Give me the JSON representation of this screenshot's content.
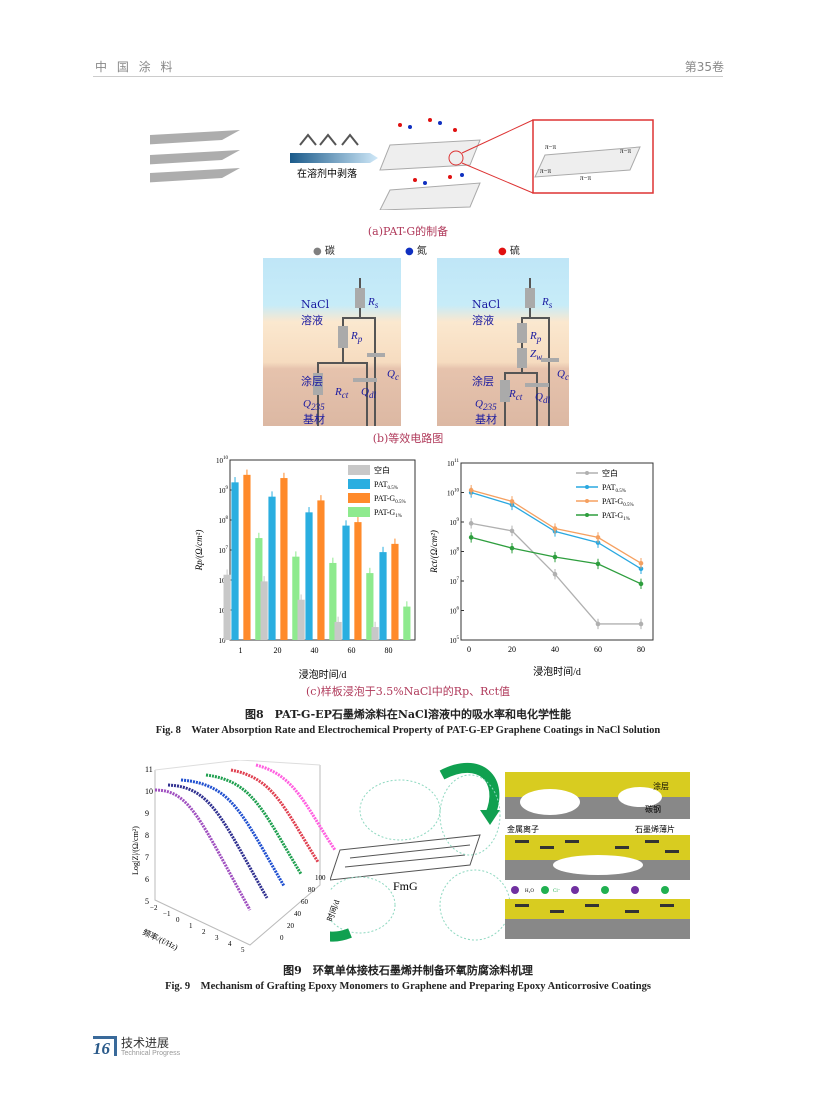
{
  "header": {
    "journal": "中 国 涂 料",
    "volume": "第35卷"
  },
  "fig8": {
    "a": {
      "label_solvent": "在溶剂中剥落",
      "pi": "π−π",
      "caption": "(a)PAT-G的制备"
    },
    "legend_atoms": [
      {
        "label": "碳",
        "color": "#808080"
      },
      {
        "label": "氮",
        "color": "#1030c0"
      },
      {
        "label": "硫",
        "color": "#e01010"
      }
    ],
    "b": {
      "nacl": "NaCl",
      "solution": "溶液",
      "coating": "涂层",
      "substrate_q": "Q",
      "substrate_sub": "235",
      "substrate": "基材",
      "Rs": "R",
      "Rs_sub": "s",
      "Rp": "R",
      "Rp_sub": "p",
      "Zw": "Z",
      "Zw_sub": "w",
      "Qc": "Q",
      "Qc_sub": "c",
      "Rct": "R",
      "Rct_sub": "ct",
      "Qdl": "Q",
      "Qdl_sub": "dl",
      "caption": "(b)等效电路图"
    },
    "c": {
      "caption": "(c)样板浸泡于3.5%NaCl中的Rp、Rct值"
    },
    "caption_cn": "图8　PAT-G-EP石墨烯涂料在NaCl溶液中的吸水率和电化学性能",
    "caption_en": "Fig. 8　Water Absorption Rate and Electrochemical Property of PAT-G-EP Graphene Coatings in NaCl Solution"
  },
  "chart_data": [
    {
      "type": "bar",
      "yscale": "log",
      "ylim": [
        10000.0,
        10000000000.0
      ],
      "xlabel": "浸泡时间/d",
      "ylabel": "Rp/(Ω/cm²)",
      "categories": [
        "1",
        "20",
        "40",
        "60",
        "80"
      ],
      "legend": "top-right",
      "error_bars": true,
      "series": [
        {
          "name": "空白",
          "sub": "",
          "color": "#c8c8c8",
          "values": [
            1500000.0,
            900000.0,
            220000.0,
            40000.0,
            27000.0
          ]
        },
        {
          "name": "PAT",
          "sub": "0.5%",
          "color": "#2aaee0",
          "values": [
            1800000000.0,
            600000000.0,
            180000000.0,
            65000000.0,
            8500000.0
          ]
        },
        {
          "name": "PAT-G",
          "sub": "0.5%",
          "color": "#ff8a2a",
          "values": [
            3200000000.0,
            2500000000.0,
            450000000.0,
            85000000.0,
            16000000.0
          ]
        },
        {
          "name": "PAT-G",
          "sub": "1%",
          "color": "#8eea8e",
          "values": [
            25000000.0,
            6000000.0,
            3700000.0,
            1700000.0,
            130000.0
          ]
        }
      ]
    },
    {
      "type": "line",
      "yscale": "log",
      "ylim": [
        100000.0,
        100000000000.0
      ],
      "xlim": [
        0,
        80
      ],
      "xlabel": "浸泡时间/d",
      "ylabel": "Rct/(Ω/cm²)",
      "x": [
        1,
        20,
        40,
        60,
        80
      ],
      "xticks": [
        0,
        20,
        40,
        60,
        80
      ],
      "legend": "top-right",
      "error_bars": true,
      "series": [
        {
          "name": "空白",
          "sub": "",
          "color": "#b0b0b0",
          "marker": "square",
          "values": [
            900000000.0,
            500000000.0,
            17000000.0,
            350000.0,
            350000.0
          ]
        },
        {
          "name": "PAT",
          "sub": "0.5%",
          "color": "#2aa8e0",
          "marker": "circle",
          "values": [
            10000000000.0,
            3800000000.0,
            480000000.0,
            200000000.0,
            26000000.0
          ]
        },
        {
          "name": "PAT-G",
          "sub": "0.5%",
          "color": "#f5a060",
          "marker": "triangle",
          "values": [
            12000000000.0,
            5000000000.0,
            600000000.0,
            300000000.0,
            40000000.0
          ]
        },
        {
          "name": "PAT-G",
          "sub": "1%",
          "color": "#2e9e3e",
          "marker": "triangle-down",
          "values": [
            300000000.0,
            130000000.0,
            65000000.0,
            38000000.0,
            8000000.0
          ]
        }
      ]
    }
  ],
  "fig9": {
    "plot": {
      "ylabel": "Log|Z|/(Ω/cm²)",
      "xlabel": "频率/(f/Hz)",
      "zlabel": "时间/d",
      "yticks": [
        "5",
        "6",
        "7",
        "8",
        "9",
        "10",
        "11"
      ],
      "xticks": [
        "−2",
        "−1",
        "0",
        "1",
        "2",
        "3",
        "4",
        "5"
      ],
      "zticks": [
        "0",
        "20",
        "40",
        "60",
        "80",
        "100"
      ],
      "series_colors": [
        "#a050c0",
        "#303090",
        "#2050d0",
        "#20a050",
        "#e04050",
        "#ff60e0"
      ]
    },
    "fmg": "FmG",
    "labels": {
      "coating": "涂层",
      "steel": "碳钢",
      "metal_ion": "金属离子",
      "graphene": "石墨烯薄片",
      "h2o": "H₂O",
      "cl": "Cl⁻"
    },
    "caption_cn": "图9　环氧单体接枝石墨烯并制备环氧防腐涂料机理",
    "caption_en": "Fig. 9　Mechanism of Grafting Epoxy Monomers to Graphene and Preparing Epoxy Anticorrosive Coatings"
  },
  "footer": {
    "page": "16",
    "section_cn": "技术进展",
    "section_en": "Technical Progress"
  }
}
